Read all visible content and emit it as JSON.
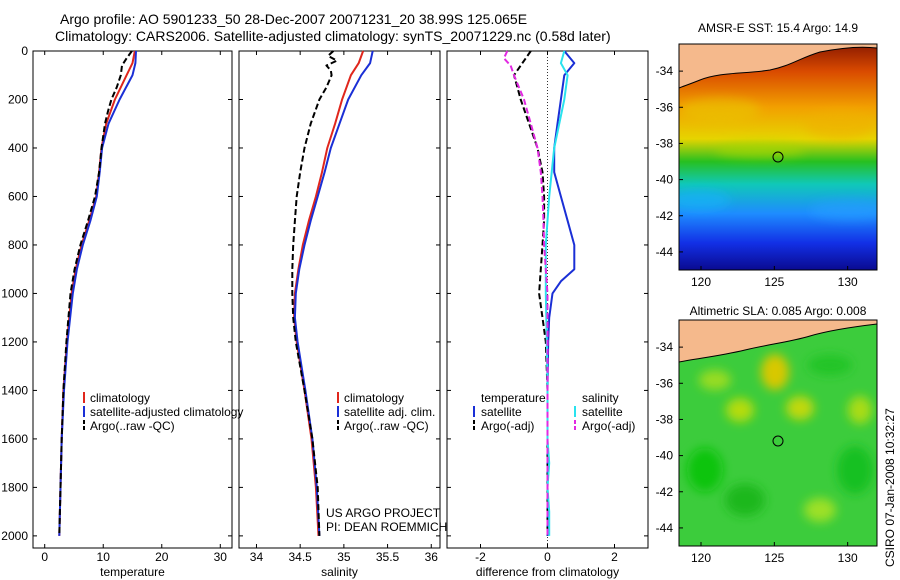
{
  "header": {
    "title_line1": "Argo profile: AO 5901233_50 28-Dec-2007 20071231_20 38.99S 125.065E",
    "title_line2": "Climatology: CARS2006. Satellite-adjusted climatology: synTS_20071229.nc (0.58d later)"
  },
  "side_label": "CSIRO 07-Jan-2008 10:32:27",
  "project_note": {
    "line1": "US ARGO PROJECT",
    "line2": "PI: DEAN ROEMMICH"
  },
  "colors": {
    "climatology": "#e0261c",
    "satellite": "#1a2fd6",
    "argo": "#000000",
    "sat_salinity": "#29e2ee",
    "argo_adj_salinity": "#e229e2",
    "land": "#f5b98c"
  },
  "chart_data": [
    {
      "id": "temperature",
      "type": "line",
      "xlabel": "temperature",
      "ylabel": "",
      "xlim": [
        -2,
        32
      ],
      "ylim": [
        2050,
        0
      ],
      "xticks": [
        0,
        10,
        20,
        30
      ],
      "yticks": [
        0,
        200,
        400,
        600,
        800,
        1000,
        1200,
        1400,
        1600,
        1800,
        2000
      ],
      "legend": [
        "climatology",
        "satellite-adjusted climatology",
        "Argo(..raw -QC)"
      ],
      "series": [
        {
          "name": "climatology",
          "depth": [
            0,
            50,
            100,
            200,
            300,
            400,
            500,
            600,
            700,
            800,
            900,
            1000,
            1200,
            1400,
            1600,
            1800,
            2000
          ],
          "values": [
            15.4,
            15.0,
            14.0,
            12.0,
            10.5,
            9.7,
            9.3,
            8.8,
            7.6,
            6.3,
            5.3,
            4.6,
            3.8,
            3.2,
            2.9,
            2.7,
            2.5
          ]
        },
        {
          "name": "satellite-adjusted climatology",
          "depth": [
            0,
            50,
            100,
            200,
            300,
            400,
            500,
            600,
            700,
            800,
            900,
            1000,
            1200,
            1400,
            1600,
            1800,
            2000
          ],
          "values": [
            15.6,
            15.5,
            15.0,
            12.8,
            10.9,
            9.8,
            9.4,
            8.9,
            7.8,
            6.5,
            5.5,
            4.8,
            3.9,
            3.3,
            2.9,
            2.7,
            2.5
          ]
        },
        {
          "name": "Argo(..raw -QC)",
          "depth": [
            0,
            30,
            60,
            100,
            150,
            200,
            250,
            300,
            400,
            500,
            600,
            700,
            800,
            900,
            1000,
            1200,
            1400,
            1600,
            1800,
            2000
          ],
          "values": [
            14.9,
            14.0,
            13.2,
            13.0,
            12.3,
            11.4,
            10.8,
            10.3,
            9.7,
            9.3,
            8.6,
            7.4,
            6.1,
            5.1,
            4.4,
            3.7,
            3.2,
            2.9,
            2.7,
            2.5
          ]
        }
      ]
    },
    {
      "id": "salinity",
      "type": "line",
      "xlabel": "salinity",
      "ylabel": "",
      "xlim": [
        33.8,
        36.1
      ],
      "ylim": [
        2050,
        0
      ],
      "xticks": [
        34,
        34.5,
        35,
        35.5,
        36
      ],
      "yticks": [
        0,
        200,
        400,
        600,
        800,
        1000,
        1200,
        1400,
        1600,
        1800,
        2000
      ],
      "legend": [
        "climatology",
        "satellite adj. clim.",
        "Argo(..raw -QC)"
      ],
      "series": [
        {
          "name": "climatology",
          "depth": [
            0,
            50,
            100,
            200,
            300,
            400,
            500,
            600,
            700,
            800,
            900,
            1000,
            1100,
            1200,
            1400,
            1600,
            1800,
            2000
          ],
          "values": [
            35.22,
            35.17,
            35.08,
            34.98,
            34.9,
            34.81,
            34.75,
            34.68,
            34.6,
            34.53,
            34.48,
            34.44,
            34.43,
            34.46,
            34.55,
            34.63,
            34.68,
            34.71
          ]
        },
        {
          "name": "satellite adj. clim.",
          "depth": [
            0,
            50,
            100,
            200,
            300,
            400,
            500,
            600,
            700,
            800,
            900,
            1000,
            1100,
            1200,
            1400,
            1600,
            1800,
            2000
          ],
          "values": [
            35.33,
            35.3,
            35.2,
            35.05,
            34.95,
            34.85,
            34.78,
            34.7,
            34.62,
            34.55,
            34.49,
            34.45,
            34.44,
            34.47,
            34.56,
            34.64,
            34.69,
            34.72
          ]
        },
        {
          "name": "Argo(..raw -QC)",
          "depth": [
            0,
            20,
            40,
            60,
            80,
            100,
            150,
            200,
            300,
            400,
            500,
            600,
            700,
            800,
            900,
            1000,
            1100,
            1200,
            1400,
            1600,
            1800,
            2000
          ],
          "values": [
            34.88,
            34.82,
            34.92,
            34.8,
            34.85,
            34.86,
            34.8,
            34.72,
            34.62,
            34.55,
            34.5,
            34.46,
            34.44,
            34.42,
            34.41,
            34.41,
            34.42,
            34.45,
            34.55,
            34.64,
            34.7,
            34.72
          ]
        }
      ]
    },
    {
      "id": "difference",
      "type": "line",
      "xlabel": "difference from climatology",
      "ylabel": "",
      "xlim": [
        -3,
        3
      ],
      "ylim": [
        2050,
        0
      ],
      "xticks": [
        -2,
        0,
        2
      ],
      "yticks": [
        0,
        200,
        400,
        600,
        800,
        1000,
        1200,
        1400,
        1600,
        1800,
        2000
      ],
      "legend_left_title": "temperature",
      "legend_right_title": "salinity",
      "legend_left": [
        "satellite",
        "Argo(-adj)"
      ],
      "legend_right": [
        "satellite",
        "Argo(-adj)"
      ],
      "series": [
        {
          "name": "temperature satellite",
          "depth": [
            0,
            50,
            100,
            200,
            300,
            400,
            500,
            600,
            700,
            800,
            900,
            950,
            1000,
            1100,
            1200,
            1400,
            1600,
            1800,
            2000
          ],
          "values": [
            0.5,
            0.8,
            0.5,
            0.4,
            0.3,
            0.2,
            0.2,
            0.4,
            0.6,
            0.8,
            0.8,
            0.4,
            0.15,
            0.05,
            0.02,
            0.0,
            0.0,
            0.0,
            0.0
          ]
        },
        {
          "name": "temperature Argo(-adj)",
          "depth": [
            0,
            50,
            100,
            150,
            200,
            300,
            400,
            500,
            600,
            700,
            800,
            900,
            1000,
            1100,
            1200,
            1400,
            1600,
            1800,
            2000
          ],
          "values": [
            -0.5,
            -0.75,
            -1.0,
            -0.9,
            -0.8,
            -0.55,
            -0.3,
            -0.15,
            -0.1,
            -0.1,
            -0.15,
            -0.2,
            -0.25,
            -0.15,
            -0.05,
            0.0,
            0.0,
            0.0,
            0.0
          ]
        },
        {
          "name": "salinity satellite",
          "depth": [
            0,
            50,
            100,
            200,
            400,
            600,
            800,
            1000,
            1200,
            1400,
            1600,
            1700,
            1800,
            1900,
            2000
          ],
          "values": [
            0.5,
            0.4,
            0.6,
            0.5,
            0.2,
            0.05,
            -0.05,
            -0.05,
            -0.02,
            0.0,
            0.0,
            0.05,
            0.0,
            0.05,
            0.05
          ]
        },
        {
          "name": "salinity Argo(-adj)",
          "depth": [
            0,
            30,
            60,
            100,
            150,
            200,
            300,
            400,
            500,
            600,
            700,
            800,
            900,
            1000,
            1200,
            1400,
            1600,
            1800,
            2000
          ],
          "values": [
            -1.2,
            -1.3,
            -1.1,
            -1.0,
            -0.85,
            -0.7,
            -0.5,
            -0.3,
            -0.2,
            -0.15,
            -0.12,
            -0.1,
            -0.05,
            0.0,
            0.0,
            0.0,
            0.0,
            0.0,
            0.0
          ]
        }
      ]
    },
    {
      "id": "sst_map",
      "type": "heatmap",
      "title": "AMSR-E SST: 15.4 Argo: 14.9",
      "xlim": [
        118.5,
        132
      ],
      "ylim": [
        -45,
        -32.5
      ],
      "xticks": [
        120,
        125,
        130
      ],
      "yticks": [
        -34,
        -36,
        -38,
        -40,
        -42,
        -44
      ],
      "marker": {
        "lon": 125.065,
        "lat": -38.99
      }
    },
    {
      "id": "sla_map",
      "type": "heatmap",
      "title": "Altimetric SLA: 0.085 Argo: 0.008",
      "xlim": [
        118.5,
        132
      ],
      "ylim": [
        -45,
        -32.5
      ],
      "xticks": [
        120,
        125,
        130
      ],
      "yticks": [
        -34,
        -36,
        -38,
        -40,
        -42,
        -44
      ],
      "marker": {
        "lon": 125.065,
        "lat": -38.99
      }
    }
  ]
}
